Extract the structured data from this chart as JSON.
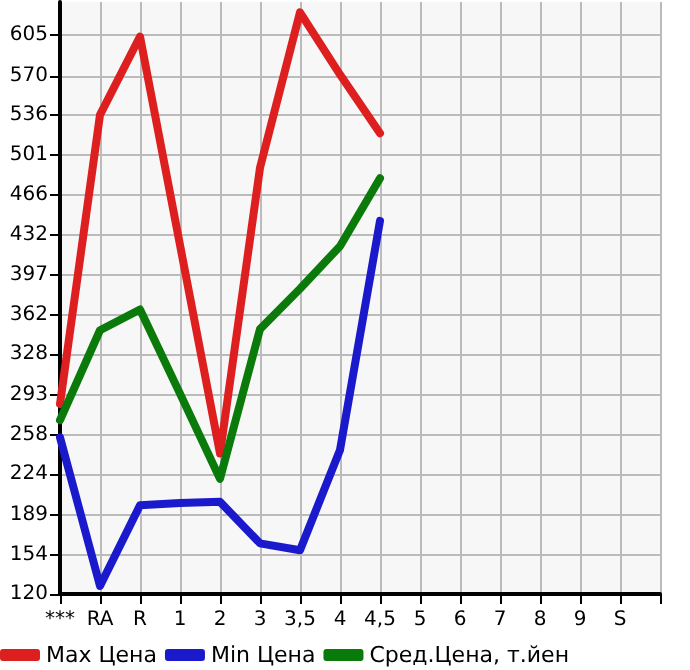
{
  "chart_data": {
    "type": "line",
    "categories": [
      "***",
      "RA",
      "R",
      "1",
      "2",
      "3",
      "3,5",
      "4",
      "4,5",
      "5",
      "6",
      "7",
      "8",
      "9",
      "S"
    ],
    "series": [
      {
        "name": "Max Цена",
        "color": "#dd1f1f",
        "values": [
          285,
          536,
          604,
          423,
          242,
          490,
          625,
          571,
          520,
          null,
          null,
          null,
          null,
          null,
          null
        ]
      },
      {
        "name": "Min Цена",
        "color": "#1a1acc",
        "values": [
          256,
          127,
          197,
          199,
          200,
          164,
          158,
          245,
          444,
          null,
          null,
          null,
          null,
          null,
          null
        ]
      },
      {
        "name": "Сред.Цена, т.йен",
        "color": "#0a7a0a",
        "values": [
          271,
          349,
          367,
          294,
          220,
          350,
          385,
          422,
          481,
          null,
          null,
          null,
          null,
          null,
          null
        ]
      }
    ],
    "ylim": [
      120,
      634
    ],
    "yticks": [
      120,
      154,
      189,
      224,
      258,
      293,
      328,
      362,
      397,
      432,
      466,
      501,
      536,
      570,
      605
    ],
    "grid": true,
    "legend": "bottom",
    "marker": "none",
    "line_style": "solid"
  }
}
